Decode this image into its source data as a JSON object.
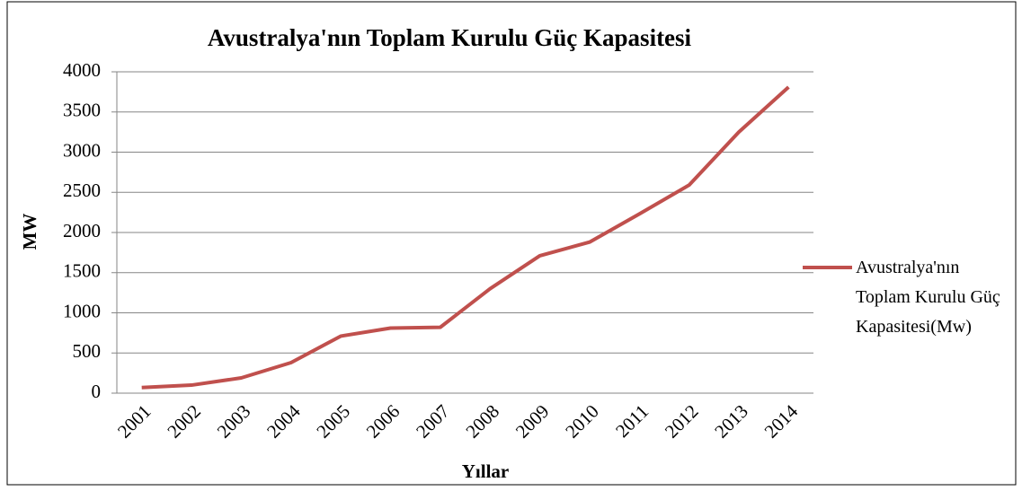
{
  "chart_data": {
    "type": "line",
    "title": "Avustralya'nın  Toplam Kurulu Güç Kapasitesi",
    "x_label": "Yıllar",
    "y_label": "MW",
    "categories": [
      "2001",
      "2002",
      "2003",
      "2004",
      "2005",
      "2006",
      "2007",
      "2008",
      "2009",
      "2010",
      "2011",
      "2012",
      "2013",
      "2014"
    ],
    "series": [
      {
        "name": "Avustralya'nın Toplam Kurulu Güç Kapasitesi(Mw)",
        "color": "#c0504d",
        "values": [
          70,
          100,
          190,
          380,
          710,
          810,
          820,
          1300,
          1710,
          1880,
          2230,
          2590,
          3250,
          3810
        ]
      }
    ],
    "ylim": [
      0,
      4000
    ],
    "yticks": [
      0,
      500,
      1000,
      1500,
      2000,
      2500,
      3000,
      3500,
      4000
    ],
    "grid": true,
    "legend": "right"
  }
}
